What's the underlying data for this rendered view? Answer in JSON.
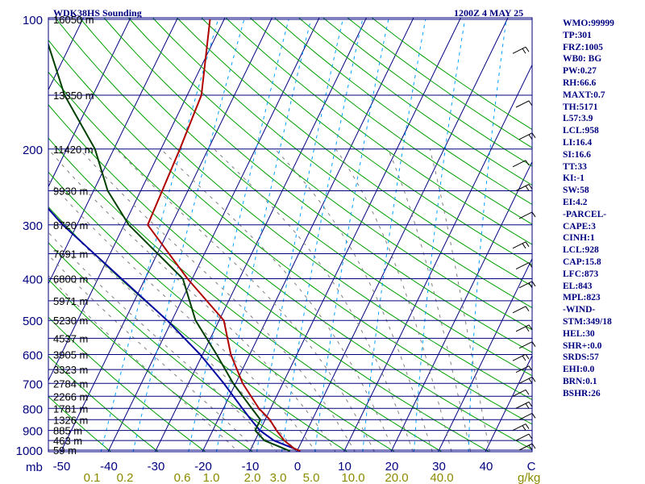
{
  "header": {
    "title": "WDK38HS Sounding",
    "time": "1200Z  4 MAY 25"
  },
  "colors": {
    "background": "#ffffff",
    "isobar": "#00007f",
    "dry_adiabat": "#00a000",
    "moist_adiabat": "#7f7f7f",
    "mixing_ratio": "#00a0ff",
    "temperature": "#b00000",
    "dewpoint": "#004000",
    "parcel": "#0000a0",
    "wind_barb": "#000000",
    "text": "#000080",
    "mixing_ratio_label": "#8b8b00"
  },
  "indices": [
    "WMO:99999",
    "TP:301",
    "FRZ:1005",
    "WB0: BG",
    "PW:0.27",
    "RH:66.6",
    "MAXT:0.7",
    "TH:5171",
    "L57:3.9",
    "LCL:958",
    "LI:16.4",
    "SI:16.6",
    "TT:33",
    "KI:-1",
    "SW:58",
    "EI:4.2",
    "-PARCEL-",
    "CAPE:3",
    "CINH:1",
    "LCL:928",
    "CAP:15.8",
    "LFC:873",
    "EL:843",
    "MPL:823",
    "-WIND-",
    "STM:349/18",
    "HEL:30",
    "SHR+:0.0",
    "SRDS:57",
    "EHI:0.0",
    "BRN:0.1",
    "BSHR:26"
  ],
  "chart_data": {
    "type": "skew-t",
    "title": "WDK38HS Sounding",
    "pressure_unit": "mb",
    "pressure_axis": {
      "scale": "log",
      "range": [
        1000,
        100
      ],
      "ticks": [
        100,
        200,
        300,
        400,
        500,
        600,
        700,
        800,
        900,
        1000
      ]
    },
    "temperature_axis": {
      "unit": "C",
      "ticks": [
        -50,
        -40,
        -30,
        -20,
        -10,
        0,
        10,
        20,
        30,
        40
      ]
    },
    "mixing_ratio_unit": "g/kg",
    "mixing_ratio_labels": [
      "0.1",
      "0.2",
      "0.6",
      "1.0",
      "2.0",
      "3.0",
      "5.0",
      "10.0",
      "20.0",
      "40.0"
    ],
    "mixing_ratio_values": [
      0.1,
      0.2,
      0.6,
      1.0,
      2.0,
      3.0,
      5.0,
      10.0,
      20.0,
      40.0
    ],
    "height_labels": [
      {
        "p": 100,
        "label": "16050 m"
      },
      {
        "p": 150,
        "label": "13350 m"
      },
      {
        "p": 200,
        "label": "11420 m"
      },
      {
        "p": 250,
        "label": "9930 m"
      },
      {
        "p": 300,
        "label": "8720 m"
      },
      {
        "p": 350,
        "label": "7691 m"
      },
      {
        "p": 400,
        "label": "6800 m"
      },
      {
        "p": 450,
        "label": "5971 m"
      },
      {
        "p": 500,
        "label": "5230 m"
      },
      {
        "p": 550,
        "label": "4537 m"
      },
      {
        "p": 600,
        "label": "3905 m"
      },
      {
        "p": 650,
        "label": "3323 m"
      },
      {
        "p": 700,
        "label": "2784 m"
      },
      {
        "p": 750,
        "label": "2266 m"
      },
      {
        "p": 800,
        "label": "1781 m"
      },
      {
        "p": 850,
        "label": "1326 m"
      },
      {
        "p": 900,
        "label": "885 m"
      },
      {
        "p": 950,
        "label": "463 m"
      },
      {
        "p": 1000,
        "label": "59 m"
      }
    ],
    "temperature": [
      {
        "p": 1005,
        "t": 0.7
      },
      {
        "p": 990,
        "t": -1.0
      },
      {
        "p": 950,
        "t": -3.8
      },
      {
        "p": 900,
        "t": -6.5
      },
      {
        "p": 850,
        "t": -9.0
      },
      {
        "p": 800,
        "t": -12.5
      },
      {
        "p": 700,
        "t": -18.5
      },
      {
        "p": 600,
        "t": -24.0
      },
      {
        "p": 500,
        "t": -29.0
      },
      {
        "p": 400,
        "t": -41.0
      },
      {
        "p": 300,
        "t": -55.0
      },
      {
        "p": 200,
        "t": -56.0
      },
      {
        "p": 150,
        "t": -57.0
      },
      {
        "p": 100,
        "t": -63.0
      }
    ],
    "dewpoint": [
      {
        "p": 1005,
        "t": -1.5
      },
      {
        "p": 950,
        "t": -8.0
      },
      {
        "p": 900,
        "t": -11.0
      },
      {
        "p": 850,
        "t": -11.0
      },
      {
        "p": 800,
        "t": -14.0
      },
      {
        "p": 700,
        "t": -20.5
      },
      {
        "p": 600,
        "t": -27.0
      },
      {
        "p": 500,
        "t": -35.0
      },
      {
        "p": 400,
        "t": -42.0
      },
      {
        "p": 300,
        "t": -59.0
      },
      {
        "p": 250,
        "t": -67.0
      },
      {
        "p": 200,
        "t": -74.0
      },
      {
        "p": 150,
        "t": -86.0
      },
      {
        "p": 100,
        "t": -99.0
      }
    ],
    "parcel": [
      {
        "p": 1005,
        "t": 0.7
      },
      {
        "p": 950,
        "t": -6.0
      },
      {
        "p": 900,
        "t": -10.0
      },
      {
        "p": 850,
        "t": -13.0
      },
      {
        "p": 800,
        "t": -16.0
      },
      {
        "p": 700,
        "t": -22.5
      },
      {
        "p": 600,
        "t": -30.5
      },
      {
        "p": 500,
        "t": -41.0
      },
      {
        "p": 400,
        "t": -55.0
      },
      {
        "p": 300,
        "t": -73.0
      },
      {
        "p": 250,
        "t": -83.0
      },
      {
        "p": 200,
        "t": -94.0
      },
      {
        "p": 150,
        "t": -107.0
      },
      {
        "p": 100,
        "t": -124.0
      }
    ],
    "wind_barb_pressures": [
      120,
      160,
      190,
      220,
      250,
      290,
      340,
      380,
      420,
      480,
      530,
      580,
      620,
      660,
      700,
      750,
      800,
      850,
      900,
      950,
      1000
    ],
    "grid": true
  }
}
